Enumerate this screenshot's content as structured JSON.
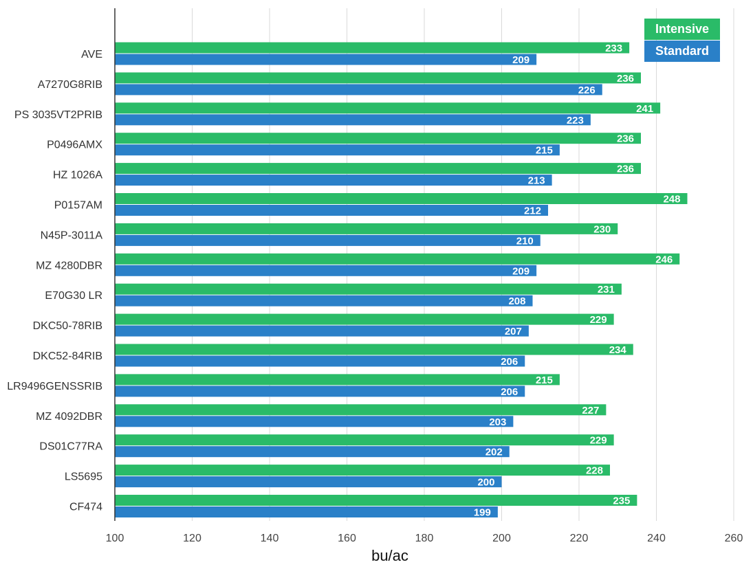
{
  "chart_data": {
    "type": "bar",
    "orientation": "horizontal",
    "xlabel": "bu/ac",
    "xlim": [
      100,
      260
    ],
    "xticks": [
      100,
      120,
      140,
      160,
      180,
      200,
      220,
      240,
      260
    ],
    "grid": "vertical",
    "legend_position": "top-right",
    "categories": [
      "AVE",
      "A7270G8RIB",
      "PS 3035VT2PRIB",
      "P0496AMX",
      "HZ 1026A",
      "P0157AM",
      "N45P-3011A",
      "MZ 4280DBR",
      "E70G30 LR",
      "DKC50-78RIB",
      "DKC52-84RIB",
      "LR9496GENSSRIB",
      "MZ 4092DBR",
      "DS01C77RA",
      "LS5695",
      "CF474"
    ],
    "series": [
      {
        "name": "Intensive",
        "color": "#2abb68",
        "values": [
          233,
          236,
          241,
          236,
          236,
          248,
          230,
          246,
          231,
          229,
          234,
          215,
          227,
          229,
          228,
          235
        ]
      },
      {
        "name": "Standard",
        "color": "#2a80c8",
        "values": [
          209,
          226,
          223,
          215,
          213,
          212,
          210,
          209,
          208,
          207,
          206,
          206,
          203,
          202,
          200,
          199
        ]
      }
    ]
  }
}
